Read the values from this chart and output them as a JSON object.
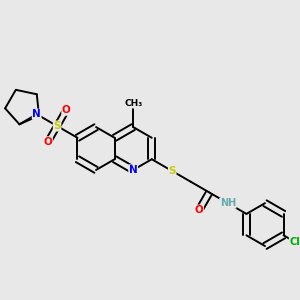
{
  "bg_color": "#e8e8e8",
  "bond_lw": 1.4,
  "dbo": 0.011,
  "atom_colors": {
    "N": "#0000ff",
    "O": "#ff0000",
    "S": "#cccc00",
    "Cl": "#00aa00",
    "NH": "#66aaaa",
    "C": "#000000"
  },
  "fs": 7.0,
  "bl": 0.072
}
